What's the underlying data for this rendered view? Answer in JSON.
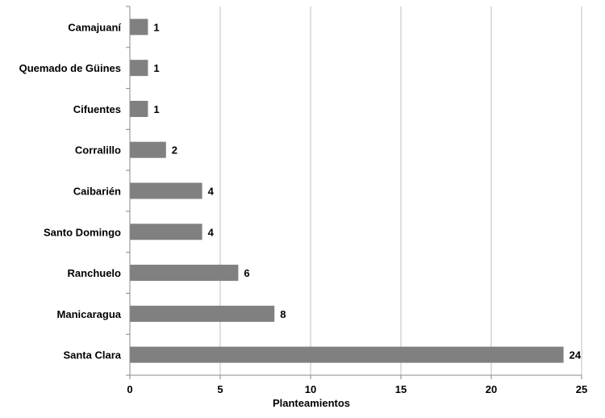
{
  "chart_data": {
    "type": "bar",
    "orientation": "horizontal",
    "categories": [
      "Camajuaní",
      "Quemado de Güines",
      "Cifuentes",
      "Corralillo",
      "Caibarién",
      "Santo Domingo",
      "Ranchuelo",
      "Manicaragua",
      "Santa Clara"
    ],
    "values": [
      1,
      1,
      1,
      2,
      4,
      4,
      6,
      8,
      24
    ],
    "title": "",
    "xlabel": "Planteamientos",
    "ylabel": "",
    "xlim": [
      0,
      25
    ],
    "xticks": [
      0,
      5,
      10,
      15,
      20,
      25
    ],
    "grid": "vertical",
    "legend": "none",
    "bar_color": "#808080",
    "data_labels": true
  }
}
